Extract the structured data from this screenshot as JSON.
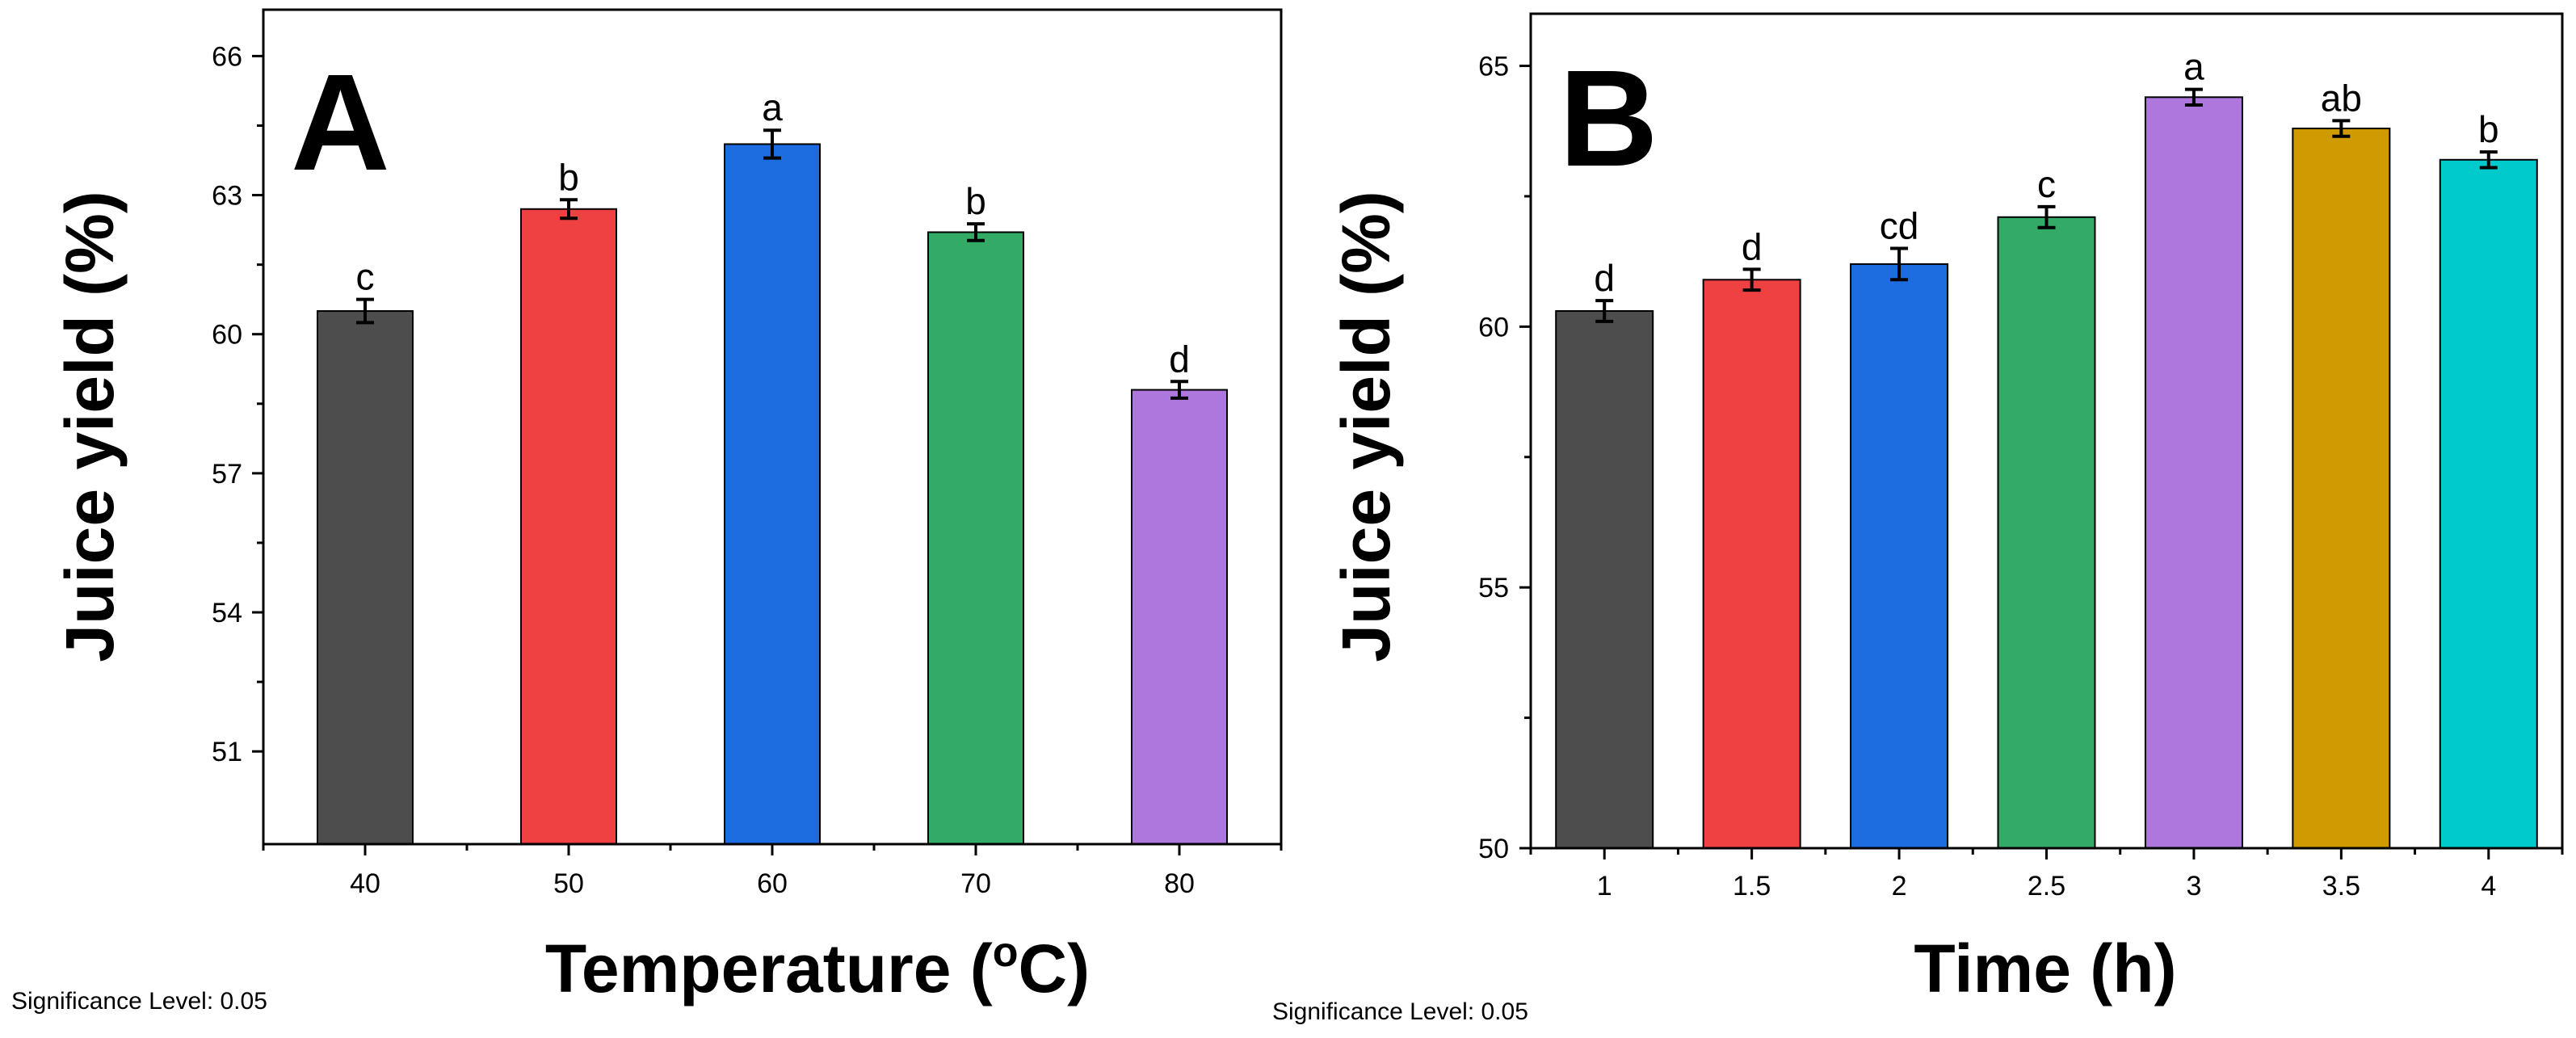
{
  "chart_data": [
    {
      "type": "bar",
      "panel_label": "A",
      "xlabel": "Temperature (",
      "xlabel_sup": "o",
      "xlabel_tail": "C)",
      "ylabel": "Juice yield (%)",
      "ylim": [
        49,
        67
      ],
      "yticks": [
        51,
        54,
        57,
        60,
        63,
        66
      ],
      "categories": [
        "40",
        "50",
        "60",
        "70",
        "80"
      ],
      "values": [
        60.5,
        62.7,
        64.1,
        62.2,
        58.8
      ],
      "errors": [
        0.25,
        0.2,
        0.3,
        0.18,
        0.18
      ],
      "letters": [
        "c",
        "b",
        "a",
        "b",
        "d"
      ],
      "colors": [
        "#4d4d4d",
        "#ef4141",
        "#1d6de0",
        "#33ab67",
        "#ae77de"
      ],
      "significance_note": "Significance Level: 0.05"
    },
    {
      "type": "bar",
      "panel_label": "B",
      "xlabel": "Time (h)",
      "ylabel": "Juice yield (%)",
      "ylim": [
        50,
        66
      ],
      "yticks": [
        50,
        55,
        60,
        65
      ],
      "categories": [
        "1",
        "1.5",
        "2",
        "2.5",
        "3",
        "3.5",
        "4"
      ],
      "values": [
        60.3,
        60.9,
        61.2,
        62.1,
        64.4,
        63.8,
        63.2
      ],
      "errors": [
        0.2,
        0.2,
        0.3,
        0.2,
        0.15,
        0.15,
        0.15
      ],
      "letters": [
        "d",
        "d",
        "cd",
        "c",
        "a",
        "ab",
        "b"
      ],
      "colors": [
        "#4d4d4d",
        "#ef4141",
        "#1d6de0",
        "#33ab67",
        "#ae77de",
        "#d09b00",
        "#00cacc"
      ],
      "significance_note": "Significance Level: 0.05"
    }
  ]
}
